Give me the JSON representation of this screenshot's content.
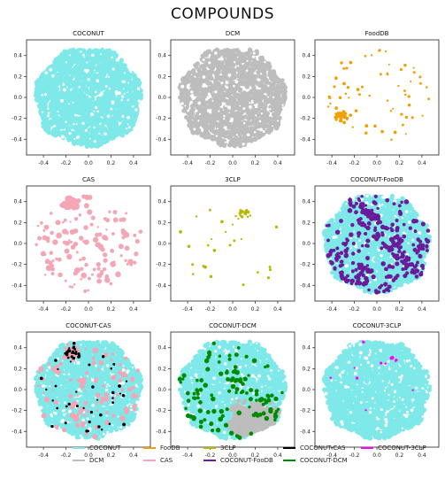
{
  "title": "COMPOUNDS",
  "colors": {
    "COCONUT": "#7fe8e8",
    "DCM": "#bdbdbd",
    "FooDB": "#f0a000",
    "CAS": "#f4a6b6",
    "3CLP": "#b8b800",
    "COCONUT-FooDB": "#6a1b9a",
    "COCONUT-CAS": "#000000",
    "COCONUT-DCM": "#008a00",
    "COCONUT-3CLP": "#ff00ff"
  },
  "legend": [
    {
      "label": "COCONUT",
      "color": "#7fe8e8"
    },
    {
      "label": "DCM",
      "color": "#bdbdbd"
    },
    {
      "label": "FooDB",
      "color": "#f0a000"
    },
    {
      "label": "CAS",
      "color": "#f4a6b6"
    },
    {
      "label": "3CLP",
      "color": "#b8b800"
    },
    {
      "label": "COCONUT-FooDB",
      "color": "#6a1b9a"
    },
    {
      "label": "COCONUT-CAS",
      "color": "#000000"
    },
    {
      "label": "COCONUT-DCM",
      "color": "#008a00"
    },
    {
      "label": "COCONUT-3CLP",
      "color": "#ff00ff"
    }
  ],
  "chart_data": [
    {
      "type": "scatter",
      "title": "COCONUT",
      "xlim": [
        -0.55,
        0.55
      ],
      "ylim": [
        -0.55,
        0.55
      ],
      "xticks": [
        "-0.4",
        "-0.2",
        "0.0",
        "0.2",
        "0.4"
      ],
      "yticks": [
        "-0.4",
        "-0.2",
        "0.0",
        "0.2",
        "0.4"
      ],
      "series": [
        {
          "name": "COCONUT",
          "fill": "disk",
          "density": 1.0
        }
      ]
    },
    {
      "type": "scatter",
      "title": "DCM",
      "xlim": [
        -0.55,
        0.55
      ],
      "ylim": [
        -0.55,
        0.55
      ],
      "xticks": [
        "-0.4",
        "-0.2",
        "0.0",
        "0.2",
        "0.4"
      ],
      "yticks": [
        "-0.4",
        "-0.2",
        "0.0",
        "0.2",
        "0.4"
      ],
      "series": [
        {
          "name": "DCM",
          "fill": "disk",
          "density": 0.75
        }
      ]
    },
    {
      "type": "scatter",
      "title": "FoodDB",
      "xlim": [
        -0.55,
        0.55
      ],
      "ylim": [
        -0.55,
        0.55
      ],
      "xticks": [
        "-0.4",
        "-0.2",
        "0.0",
        "0.2",
        "0.4"
      ],
      "yticks": [
        "-0.4",
        "-0.2",
        "0.0",
        "0.2",
        "0.4"
      ],
      "series": [
        {
          "name": "FooDB",
          "fill": "sparse",
          "count": 110,
          "cluster": [
            -0.32,
            -0.18
          ]
        }
      ]
    },
    {
      "type": "scatter",
      "title": "CAS",
      "xlim": [
        -0.55,
        0.55
      ],
      "ylim": [
        -0.55,
        0.55
      ],
      "xticks": [
        "-0.4",
        "-0.2",
        "0.0",
        "0.2",
        "0.4"
      ],
      "yticks": [
        "-0.4",
        "-0.2",
        "0.0",
        "0.2",
        "0.4"
      ],
      "series": [
        {
          "name": "CAS",
          "fill": "patchy",
          "density": 0.25,
          "cluster": [
            -0.15,
            0.38
          ]
        }
      ]
    },
    {
      "type": "scatter",
      "title": "3CLP",
      "xlim": [
        -0.55,
        0.55
      ],
      "ylim": [
        -0.55,
        0.55
      ],
      "xticks": [
        "-0.4",
        "-0.2",
        "0.0",
        "0.2",
        "0.4"
      ],
      "yticks": [
        "-0.4",
        "-0.2",
        "0.0",
        "0.2",
        "0.4"
      ],
      "series": [
        {
          "name": "3CLP",
          "fill": "sparse",
          "count": 40,
          "cluster": [
            0.1,
            0.28
          ]
        }
      ]
    },
    {
      "type": "scatter",
      "title": "COCONUT-FooDB",
      "xlim": [
        -0.55,
        0.55
      ],
      "ylim": [
        -0.55,
        0.55
      ],
      "xticks": [
        "-0.4",
        "-0.2",
        "0.0",
        "0.2",
        "0.4"
      ],
      "yticks": [
        "-0.4",
        "-0.2",
        "0.0",
        "0.2",
        "0.4"
      ],
      "series": [
        {
          "name": "COCONUT",
          "fill": "disk",
          "density": 1.0
        },
        {
          "name": "COCONUT-FooDB",
          "fill": "overlay",
          "density": 0.45
        }
      ]
    },
    {
      "type": "scatter",
      "title": "COCONUT-CAS",
      "xlim": [
        -0.55,
        0.55
      ],
      "ylim": [
        -0.55,
        0.55
      ],
      "xticks": [
        "-0.4",
        "-0.2",
        "0.0",
        "0.2",
        "0.4"
      ],
      "yticks": [
        "-0.4",
        "-0.2",
        "0.0",
        "0.2",
        "0.4"
      ],
      "series": [
        {
          "name": "COCONUT",
          "fill": "disk",
          "density": 1.0
        },
        {
          "name": "CAS",
          "fill": "patchy",
          "density": 0.15,
          "cluster": [
            -0.15,
            0.35
          ]
        },
        {
          "name": "COCONUT-CAS",
          "fill": "sparse",
          "count": 60,
          "cluster": [
            -0.15,
            0.35
          ]
        }
      ]
    },
    {
      "type": "scatter",
      "title": "COCONUT-DCM",
      "xlim": [
        -0.55,
        0.55
      ],
      "ylim": [
        -0.55,
        0.55
      ],
      "xticks": [
        "-0.4",
        "-0.2",
        "0.0",
        "0.2",
        "0.4"
      ],
      "yticks": [
        "-0.4",
        "-0.2",
        "0.0",
        "0.2",
        "0.4"
      ],
      "series": [
        {
          "name": "COCONUT",
          "fill": "disk",
          "density": 1.0
        },
        {
          "name": "DCM",
          "fill": "region",
          "density": 0.8,
          "cluster": [
            0.2,
            -0.3
          ]
        },
        {
          "name": "COCONUT-DCM",
          "fill": "overlay",
          "density": 0.18
        }
      ]
    },
    {
      "type": "scatter",
      "title": "COCONUT-3CLP",
      "xlim": [
        -0.55,
        0.55
      ],
      "ylim": [
        -0.55,
        0.55
      ],
      "xticks": [
        "-0.4",
        "-0.2",
        "0.0",
        "0.2",
        "0.4"
      ],
      "yticks": [
        "-0.4",
        "-0.2",
        "0.0",
        "0.2",
        "0.4"
      ],
      "series": [
        {
          "name": "COCONUT",
          "fill": "disk",
          "density": 1.0
        },
        {
          "name": "COCONUT-3CLP",
          "fill": "sparse",
          "count": 14,
          "cluster": [
            0.1,
            0.28
          ]
        }
      ]
    }
  ]
}
